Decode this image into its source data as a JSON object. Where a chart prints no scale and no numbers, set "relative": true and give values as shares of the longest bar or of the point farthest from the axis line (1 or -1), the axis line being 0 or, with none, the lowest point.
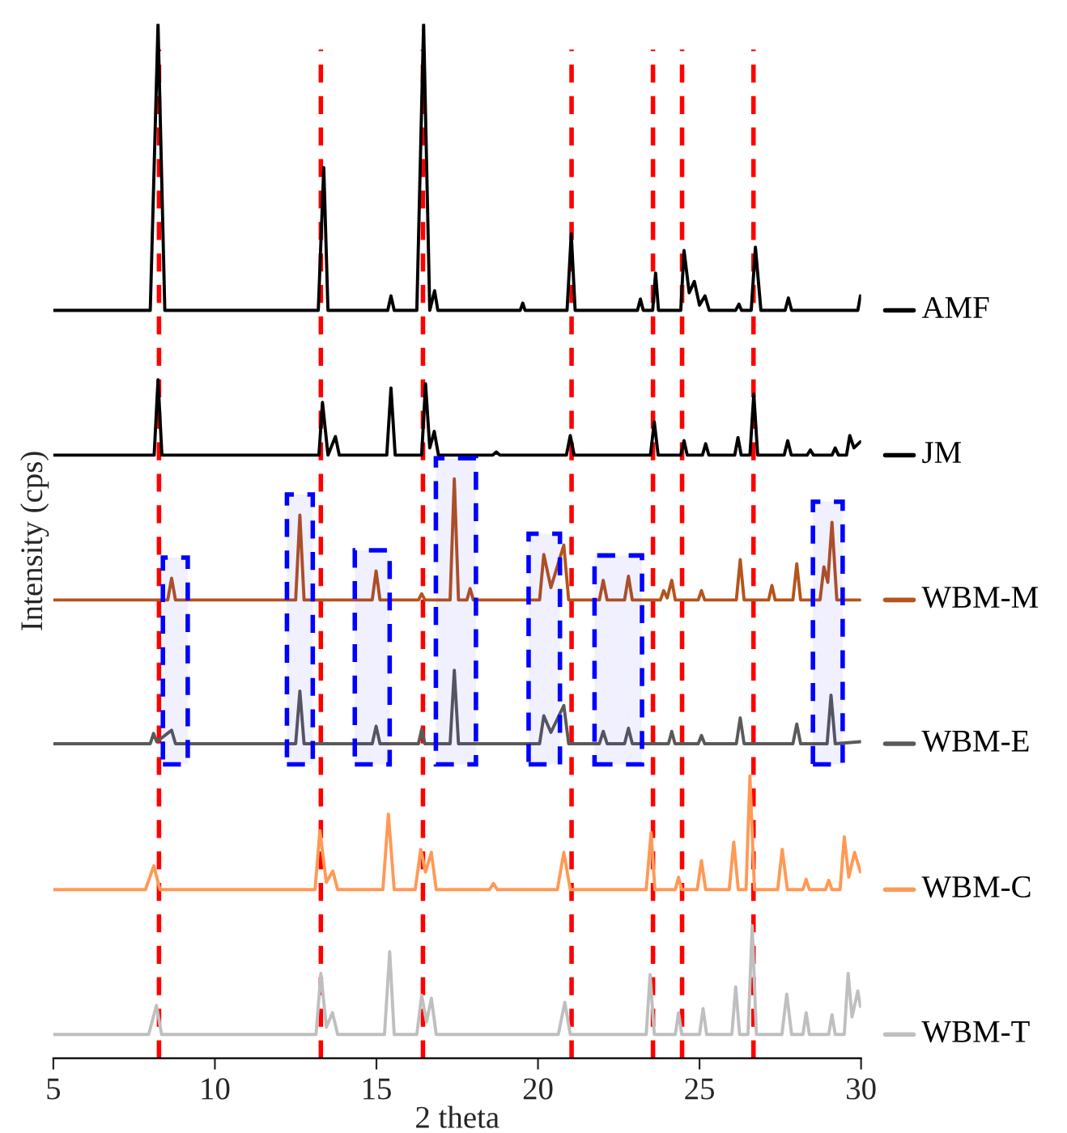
{
  "chart_data": {
    "type": "line",
    "relative": true,
    "xlabel": "2 theta",
    "ylabel": "Intensity (cps)",
    "xlim": [
      5,
      30
    ],
    "xticks": [
      5,
      10,
      15,
      20,
      25,
      30
    ],
    "tick_labels": "x",
    "legend": "right",
    "grid": false,
    "series": [
      {
        "name": "AMF",
        "color": "#000000",
        "x": [
          5,
          8.0,
          8.24,
          8.45,
          13.2,
          13.37,
          13.5,
          15.35,
          15.45,
          15.55,
          16.25,
          16.46,
          16.65,
          16.8,
          16.9,
          19.45,
          19.53,
          19.6,
          20.9,
          21.03,
          21.15,
          23.08,
          23.17,
          23.26,
          23.55,
          23.64,
          23.73,
          24.42,
          24.52,
          24.68,
          24.84,
          25.0,
          25.17,
          25.3,
          26.12,
          26.22,
          26.3,
          26.6,
          26.73,
          26.9,
          27.65,
          27.75,
          27.85,
          29.9,
          29.98
        ],
        "values": [
          0.723,
          0.723,
          1.0,
          0.723,
          0.723,
          0.861,
          0.723,
          0.723,
          0.737,
          0.723,
          0.723,
          1.0,
          0.723,
          0.742,
          0.723,
          0.723,
          0.73,
          0.723,
          0.723,
          0.797,
          0.723,
          0.723,
          0.734,
          0.723,
          0.723,
          0.759,
          0.723,
          0.723,
          0.781,
          0.74,
          0.751,
          0.728,
          0.737,
          0.723,
          0.723,
          0.729,
          0.723,
          0.723,
          0.784,
          0.723,
          0.723,
          0.735,
          0.723,
          0.723,
          0.737
        ]
      },
      {
        "name": "JM",
        "color": "#000000",
        "x": [
          5,
          8.12,
          8.24,
          8.36,
          13.22,
          13.33,
          13.5,
          13.73,
          13.85,
          15.32,
          15.45,
          15.58,
          16.4,
          16.52,
          16.65,
          16.79,
          16.92,
          18.6,
          18.71,
          18.82,
          20.88,
          21.0,
          21.12,
          23.48,
          23.6,
          23.72,
          24.42,
          24.52,
          24.62,
          25.09,
          25.19,
          25.29,
          26.09,
          26.19,
          26.29,
          26.56,
          26.68,
          26.8,
          27.62,
          27.73,
          27.84,
          28.33,
          28.43,
          28.53,
          29.1,
          29.2,
          29.3,
          29.55,
          29.65,
          29.78,
          29.98
        ],
        "values": [
          0.583,
          0.583,
          0.656,
          0.583,
          0.583,
          0.634,
          0.583,
          0.601,
          0.583,
          0.583,
          0.648,
          0.583,
          0.583,
          0.652,
          0.59,
          0.606,
          0.583,
          0.583,
          0.586,
          0.583,
          0.583,
          0.602,
          0.583,
          0.583,
          0.615,
          0.583,
          0.583,
          0.597,
          0.583,
          0.583,
          0.594,
          0.583,
          0.583,
          0.6,
          0.583,
          0.583,
          0.642,
          0.583,
          0.583,
          0.597,
          0.583,
          0.583,
          0.588,
          0.583,
          0.583,
          0.59,
          0.583,
          0.583,
          0.602,
          0.59,
          0.596
        ]
      },
      {
        "name": "WBM-M",
        "color": "#b5541c",
        "x": [
          5,
          8.54,
          8.66,
          8.78,
          12.5,
          12.63,
          12.76,
          14.87,
          14.99,
          15.11,
          16.3,
          16.4,
          16.5,
          17.28,
          17.41,
          17.54,
          17.8,
          17.9,
          18.0,
          20.05,
          20.18,
          20.4,
          20.8,
          20.95,
          21.9,
          22.02,
          22.14,
          22.68,
          22.8,
          22.92,
          23.79,
          23.89,
          24.0,
          24.14,
          24.25,
          24.96,
          25.06,
          25.16,
          26.14,
          26.26,
          26.38,
          27.14,
          27.24,
          27.34,
          27.89,
          28.01,
          28.13,
          28.73,
          28.85,
          28.97,
          29.1,
          29.25,
          29.98
        ],
        "values": [
          0.443,
          0.443,
          0.464,
          0.443,
          0.443,
          0.525,
          0.443,
          0.443,
          0.471,
          0.443,
          0.443,
          0.449,
          0.443,
          0.443,
          0.56,
          0.443,
          0.443,
          0.454,
          0.443,
          0.443,
          0.487,
          0.455,
          0.496,
          0.443,
          0.443,
          0.462,
          0.443,
          0.443,
          0.466,
          0.443,
          0.443,
          0.452,
          0.445,
          0.462,
          0.443,
          0.443,
          0.452,
          0.443,
          0.443,
          0.482,
          0.443,
          0.443,
          0.457,
          0.443,
          0.443,
          0.478,
          0.443,
          0.443,
          0.475,
          0.46,
          0.518,
          0.443,
          0.443
        ]
      },
      {
        "name": "WBM-E",
        "color": "#5a5a5a",
        "x": [
          5,
          8.0,
          8.1,
          8.2,
          8.66,
          8.78,
          12.5,
          12.63,
          12.76,
          14.87,
          14.99,
          15.11,
          16.3,
          16.4,
          16.5,
          17.28,
          17.41,
          17.54,
          20.05,
          20.18,
          20.4,
          20.8,
          20.95,
          21.9,
          22.02,
          22.14,
          22.68,
          22.8,
          22.92,
          24.04,
          24.14,
          24.24,
          24.96,
          25.06,
          25.16,
          26.14,
          26.26,
          26.38,
          27.89,
          28.01,
          28.13,
          28.95,
          29.07,
          29.2,
          29.98
        ],
        "values": [
          0.304,
          0.304,
          0.314,
          0.306,
          0.317,
          0.304,
          0.304,
          0.355,
          0.304,
          0.304,
          0.321,
          0.304,
          0.304,
          0.318,
          0.304,
          0.304,
          0.375,
          0.304,
          0.304,
          0.331,
          0.315,
          0.341,
          0.304,
          0.304,
          0.316,
          0.304,
          0.304,
          0.319,
          0.304,
          0.304,
          0.316,
          0.304,
          0.304,
          0.312,
          0.304,
          0.304,
          0.329,
          0.304,
          0.304,
          0.323,
          0.304,
          0.304,
          0.351,
          0.304,
          0.306
        ]
      },
      {
        "name": "WBM-C",
        "color": "#ff9955",
        "x": [
          5,
          7.85,
          8.11,
          8.3,
          13.1,
          13.25,
          13.45,
          13.65,
          13.8,
          15.2,
          15.37,
          15.55,
          16.2,
          16.37,
          16.52,
          16.7,
          16.85,
          18.5,
          18.62,
          18.74,
          20.6,
          20.8,
          21.0,
          23.35,
          23.5,
          23.62,
          24.25,
          24.35,
          24.45,
          24.93,
          25.06,
          25.19,
          25.92,
          26.06,
          26.2,
          26.44,
          26.56,
          26.7,
          27.42,
          27.56,
          27.72,
          28.2,
          28.3,
          28.4,
          28.9,
          29.0,
          29.1,
          29.35,
          29.48,
          29.62,
          29.8,
          29.98
        ],
        "values": [
          0.163,
          0.163,
          0.186,
          0.163,
          0.163,
          0.22,
          0.17,
          0.181,
          0.163,
          0.163,
          0.236,
          0.163,
          0.163,
          0.202,
          0.18,
          0.199,
          0.163,
          0.163,
          0.169,
          0.163,
          0.163,
          0.199,
          0.163,
          0.163,
          0.218,
          0.163,
          0.163,
          0.175,
          0.163,
          0.163,
          0.191,
          0.163,
          0.163,
          0.209,
          0.163,
          0.163,
          0.273,
          0.163,
          0.163,
          0.202,
          0.163,
          0.163,
          0.173,
          0.163,
          0.163,
          0.172,
          0.163,
          0.163,
          0.214,
          0.175,
          0.199,
          0.18
        ]
      },
      {
        "name": "WBM-T",
        "color": "#bfbfbf",
        "x": [
          5,
          7.95,
          8.19,
          8.35,
          13.13,
          13.28,
          13.45,
          13.64,
          13.8,
          15.25,
          15.41,
          15.55,
          16.25,
          16.4,
          16.55,
          16.7,
          16.85,
          20.63,
          20.83,
          21.0,
          23.35,
          23.47,
          23.6,
          24.25,
          24.35,
          24.45,
          25.0,
          25.11,
          25.22,
          26.0,
          26.12,
          26.24,
          26.5,
          26.63,
          26.76,
          27.55,
          27.7,
          27.85,
          28.2,
          28.3,
          28.4,
          29.0,
          29.1,
          29.2,
          29.48,
          29.6,
          29.72,
          29.9,
          29.98
        ],
        "values": [
          0.023,
          0.023,
          0.051,
          0.023,
          0.023,
          0.082,
          0.03,
          0.044,
          0.023,
          0.023,
          0.103,
          0.023,
          0.023,
          0.061,
          0.035,
          0.058,
          0.023,
          0.023,
          0.054,
          0.023,
          0.023,
          0.081,
          0.023,
          0.023,
          0.044,
          0.023,
          0.023,
          0.048,
          0.023,
          0.023,
          0.069,
          0.023,
          0.023,
          0.128,
          0.023,
          0.023,
          0.062,
          0.023,
          0.023,
          0.044,
          0.023,
          0.023,
          0.042,
          0.023,
          0.023,
          0.082,
          0.04,
          0.065,
          0.05
        ]
      }
    ],
    "ref_lines": [
      {
        "axis": "x",
        "value": 8.27,
        "color": "#ff0000",
        "line_style": "dashed"
      },
      {
        "axis": "x",
        "value": 13.28,
        "color": "#ff0000",
        "line_style": "dashed"
      },
      {
        "axis": "x",
        "value": 16.44,
        "color": "#ff0000",
        "line_style": "dashed"
      },
      {
        "axis": "x",
        "value": 21.04,
        "color": "#ff0000",
        "line_style": "dashed"
      },
      {
        "axis": "x",
        "value": 23.56,
        "color": "#ff0000",
        "line_style": "dashed"
      },
      {
        "axis": "x",
        "value": 24.46,
        "color": "#ff0000",
        "line_style": "dashed"
      },
      {
        "axis": "x",
        "value": 26.67,
        "color": "#ff0000",
        "line_style": "dashed"
      }
    ],
    "bands": [
      {
        "axis": "x",
        "from": 8.39,
        "to": 9.16,
        "color": "#0000ff"
      },
      {
        "axis": "x",
        "from": 12.23,
        "to": 13.03,
        "color": "#0000ff"
      },
      {
        "axis": "x",
        "from": 14.33,
        "to": 15.41,
        "color": "#0000ff"
      },
      {
        "axis": "x",
        "from": 16.84,
        "to": 18.08,
        "color": "#0000ff"
      },
      {
        "axis": "x",
        "from": 19.71,
        "to": 20.68,
        "color": "#0000ff"
      },
      {
        "axis": "x",
        "from": 21.75,
        "to": 23.22,
        "color": "#0000ff"
      },
      {
        "axis": "x",
        "from": 28.51,
        "to": 29.43,
        "color": "#0000ff"
      }
    ]
  }
}
